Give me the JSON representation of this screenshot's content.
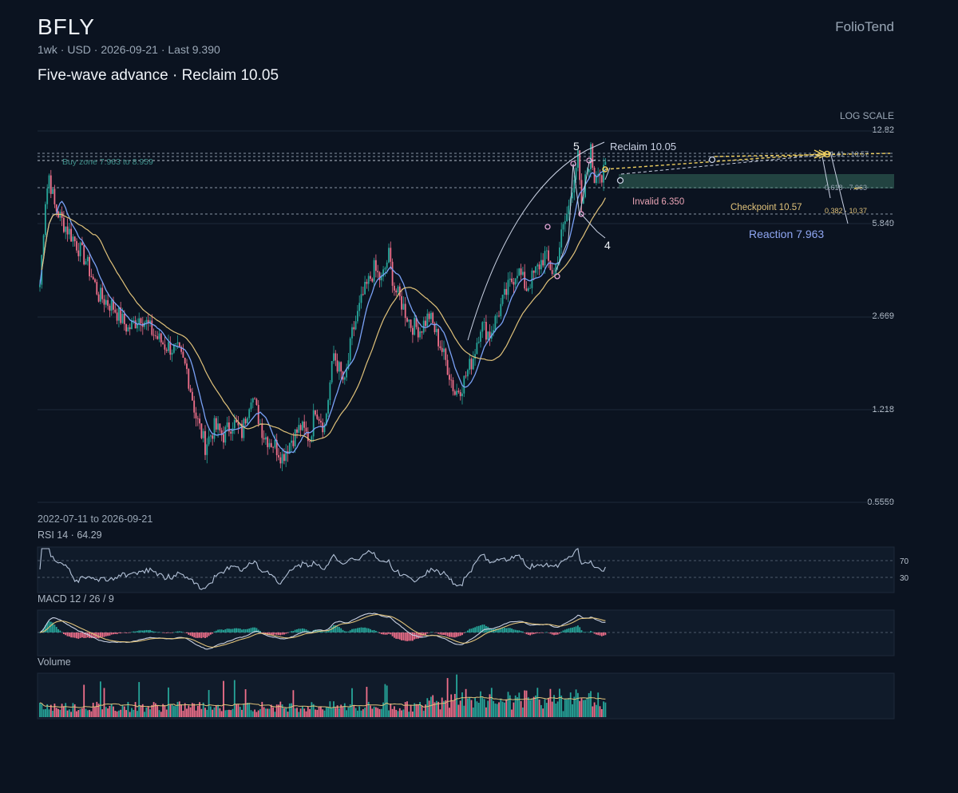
{
  "header": {
    "ticker": "BFLY",
    "brand": "FolioTend",
    "meta": "1wk · USD · 2026-09-21 · Last 9.390",
    "headline": "Five-wave advance · Reclaim 10.05",
    "scale_label": "LOG SCALE",
    "date_range": "2022-07-11 to 2026-09-21"
  },
  "colors": {
    "background": "#0b1320",
    "up": "#26a69a",
    "down": "#ef6f8a",
    "ma_fast": "#7aa2f7",
    "ma_slow": "#e0c27a",
    "wave": "#c9d1e3",
    "accent_yellow": "#f0d060",
    "zone": "#3f7f6a"
  },
  "chart_data": {
    "type": "candlestick",
    "title": "BFLY",
    "interval": "1wk",
    "currency": "USD",
    "start_date": "2022-07-11",
    "end_date": "2026-09-21",
    "last": 9.39,
    "log_scale": true,
    "y_ticks": [
      "12.82",
      "5.849",
      "2.669",
      "1.218",
      "0.5559"
    ],
    "ylim": [
      0.5559,
      12.82
    ],
    "ohlc_close_path": [
      [
        0,
        3.5
      ],
      [
        3,
        7.2
      ],
      [
        5,
        8.8
      ],
      [
        8,
        6.8
      ],
      [
        12,
        6.0
      ],
      [
        18,
        5.2
      ],
      [
        25,
        4.3
      ],
      [
        32,
        3.2
      ],
      [
        40,
        2.9
      ],
      [
        48,
        2.4
      ],
      [
        55,
        2.7
      ],
      [
        62,
        2.3
      ],
      [
        68,
        2.1
      ],
      [
        75,
        2.0
      ],
      [
        80,
        1.7
      ],
      [
        85,
        1.15
      ],
      [
        90,
        0.9
      ],
      [
        95,
        1.05
      ],
      [
        100,
        0.98
      ],
      [
        105,
        1.1
      ],
      [
        110,
        1.0
      ],
      [
        115,
        1.4
      ],
      [
        118,
        1.2
      ],
      [
        122,
        0.98
      ],
      [
        128,
        0.9
      ],
      [
        132,
        0.82
      ],
      [
        137,
        0.95
      ],
      [
        142,
        1.05
      ],
      [
        147,
        0.95
      ],
      [
        150,
        1.25
      ],
      [
        155,
        1.05
      ],
      [
        160,
        1.95
      ],
      [
        166,
        1.5
      ],
      [
        170,
        2.3
      ],
      [
        176,
        3.2
      ],
      [
        182,
        4.0
      ],
      [
        186,
        3.6
      ],
      [
        190,
        4.5
      ],
      [
        193,
        3.4
      ],
      [
        197,
        3.0
      ],
      [
        202,
        2.5
      ],
      [
        207,
        2.4
      ],
      [
        212,
        2.7
      ],
      [
        218,
        2.1
      ],
      [
        222,
        1.75
      ],
      [
        226,
        1.4
      ],
      [
        230,
        1.5
      ],
      [
        236,
        1.9
      ],
      [
        240,
        2.5
      ],
      [
        245,
        2.3
      ],
      [
        250,
        2.8
      ],
      [
        255,
        3.4
      ],
      [
        260,
        4.0
      ],
      [
        265,
        3.4
      ],
      [
        270,
        3.9
      ],
      [
        275,
        4.5
      ],
      [
        280,
        3.8
      ],
      [
        284,
        5.3
      ],
      [
        288,
        6.7
      ],
      [
        291,
        9.0
      ],
      [
        293,
        10.2
      ],
      [
        295,
        6.5
      ],
      [
        297,
        8.4
      ],
      [
        300,
        10.8
      ],
      [
        302,
        8.6
      ],
      [
        304,
        9.6
      ],
      [
        306,
        8.5
      ],
      [
        308,
        9.4
      ]
    ],
    "moving_averages": [
      "fast",
      "slow"
    ],
    "levels": [
      {
        "label": "Reclaim 10.05",
        "value": 10.05
      },
      {
        "label": "Invalid 6.350",
        "value": 6.35
      },
      {
        "label": "Checkpoint 10.57",
        "value": 10.57
      },
      {
        "label": "Reaction 7.963",
        "value": 7.963
      }
    ],
    "buy_zone": {
      "label": "Buy zone 7.963 to 8.959",
      "low": 7.963,
      "high": 8.959
    },
    "fib_labels": [
      "1.41 · 10.57",
      "0.618 · 7.963",
      "0.382 · 10.37"
    ],
    "wave_labels": [
      "5",
      "4"
    ],
    "panels": {
      "rsi": {
        "title": "RSI 14 · 64.29",
        "value": 64.29,
        "levels": [
          "70",
          "30"
        ]
      },
      "macd": {
        "title": "MACD 12 / 26 / 9"
      },
      "volume": {
        "title": "Volume"
      }
    }
  }
}
